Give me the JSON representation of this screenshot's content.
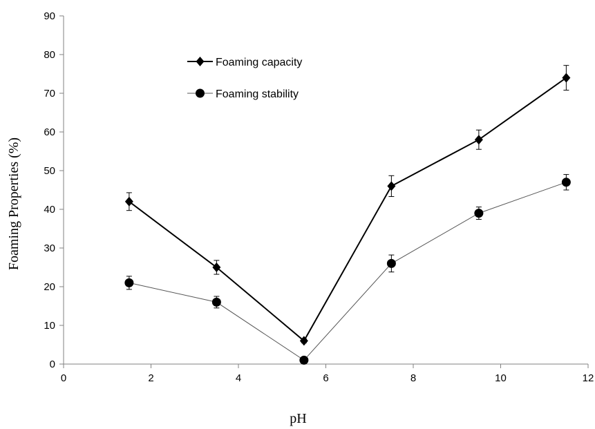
{
  "chart_data": {
    "type": "line",
    "xlabel": "pH",
    "ylabel": "Foaming Properties (%)",
    "xlim": [
      0,
      12
    ],
    "ylim": [
      0,
      90
    ],
    "x_ticks": [
      "0",
      "2",
      "4",
      "6",
      "8",
      "10",
      "12"
    ],
    "y_ticks": [
      "0",
      "10",
      "20",
      "30",
      "40",
      "50",
      "60",
      "70",
      "80",
      "90"
    ],
    "grid": false,
    "legend_position": "top-left inside",
    "x": [
      1.5,
      3.5,
      5.5,
      7.5,
      9.5,
      11.5
    ],
    "series": [
      {
        "name": "Foaming capacity",
        "marker": "diamond",
        "values": [
          42,
          25,
          6,
          46,
          58,
          74
        ],
        "errors": [
          2.3,
          1.8,
          0.5,
          2.7,
          2.5,
          3.2
        ]
      },
      {
        "name": "Foaming stability",
        "marker": "circle",
        "values": [
          21,
          16,
          1,
          26,
          39,
          47
        ],
        "errors": [
          1.7,
          1.5,
          0.5,
          2.2,
          1.6,
          2.0
        ]
      }
    ],
    "colors": {
      "line": "#000000",
      "background": "#ffffff"
    }
  }
}
